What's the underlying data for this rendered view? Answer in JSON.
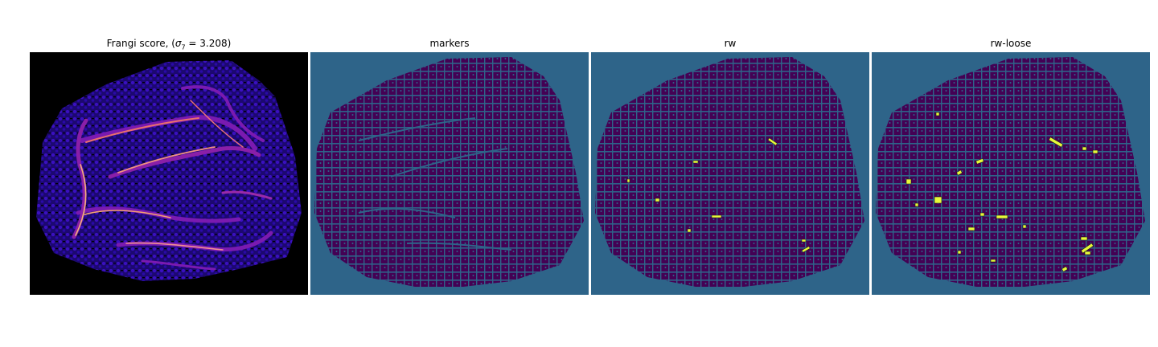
{
  "figure": {
    "panels": [
      {
        "title_prefix": "Frangi score, (",
        "title_math": "σ",
        "title_sub": "7",
        "title_suffix": " = 3.208)"
      },
      {
        "title": "markers"
      },
      {
        "title": "rw"
      },
      {
        "title": "rw-loose"
      }
    ]
  },
  "colors": {
    "frangi_background": "#000000",
    "frangi_texture": "#2a0aa8",
    "frangi_bright": "#f08a8a",
    "label_background": "#2e6489",
    "label_foreground": "#440154",
    "label_highlight": "#e7f83a"
  }
}
